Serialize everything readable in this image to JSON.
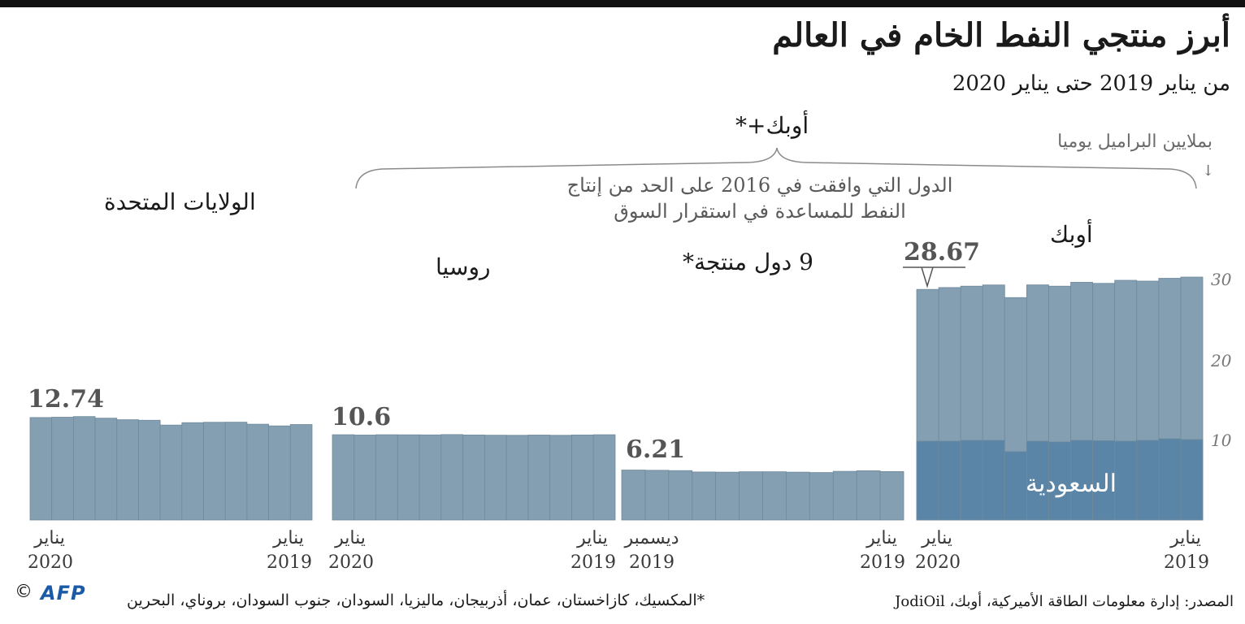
{
  "title": "أبرز منتجي النفط الخام في العالم",
  "subtitle": "من يناير 2019 حتى يناير 2020",
  "unit": "بملايين البراميل يوميا",
  "unit_arrow": "↓",
  "group": {
    "title": "أوبك+*",
    "desc_line1": "الدول التي وافقت في 2016 على الحد من إنتاج",
    "desc_line2": "النفط للمساعدة في استقرار السوق"
  },
  "regions": {
    "usa": "الولايات المتحدة",
    "russia": "روسيا",
    "nine": "9 دول منتجة*",
    "opec": "أوبك",
    "saudi": "السعودية"
  },
  "value_labels": {
    "usa": "12.74",
    "russia": "10.6",
    "nine": "6.21",
    "opec": "28.67"
  },
  "axis_labels": {
    "usa_left_month": "يناير",
    "usa_left_year": "2020",
    "usa_right_month": "يناير",
    "usa_right_year": "2019",
    "russia_left_month": "يناير",
    "russia_left_year": "2020",
    "russia_right_month": "يناير",
    "russia_right_year": "2019",
    "nine_left_month": "ديسمبر",
    "nine_left_year": "2019",
    "nine_right_month": "يناير",
    "nine_right_year": "2019",
    "opec_left_month": "يناير",
    "opec_left_year": "2020",
    "opec_right_month": "يناير",
    "opec_right_year": "2019"
  },
  "y_ticks": [
    "10",
    "20",
    "30"
  ],
  "source": "المصدر: إدارة معلومات الطاقة الأميركية، أوبك، JodiOil",
  "footnote": "*المكسيك، كازاخستان، عمان، أذربيجان، ماليزيا، السودان، جنوب السودان، بروناي، البحرين",
  "logo": "AFP",
  "copyright": "©",
  "colors": {
    "bar": "#849fb2",
    "bar_stroke": "#6f8a9c",
    "saudi": "#5a85a6",
    "text": "#1a1a1a"
  },
  "chart_data": [
    {
      "type": "bar",
      "title": "الولايات المتحدة",
      "categories": [
        "2020-01",
        "2019-12",
        "2019-11",
        "2019-10",
        "2019-09",
        "2019-08",
        "2019-07",
        "2019-06",
        "2019-05",
        "2019-04",
        "2019-03",
        "2019-02",
        "2019-01"
      ],
      "values": [
        12.74,
        12.78,
        12.86,
        12.66,
        12.47,
        12.4,
        11.8,
        12.1,
        12.15,
        12.16,
        11.91,
        11.7,
        11.87
      ],
      "ylim": [
        0,
        30
      ]
    },
    {
      "type": "bar",
      "title": "روسيا",
      "categories": [
        "2020-01",
        "2019-12",
        "2019-11",
        "2019-10",
        "2019-09",
        "2019-08",
        "2019-07",
        "2019-06",
        "2019-05",
        "2019-04",
        "2019-03",
        "2019-02",
        "2019-01"
      ],
      "values": [
        10.6,
        10.56,
        10.6,
        10.59,
        10.58,
        10.62,
        10.57,
        10.54,
        10.53,
        10.56,
        10.53,
        10.57,
        10.6
      ],
      "ylim": [
        0,
        30
      ]
    },
    {
      "type": "bar",
      "title": "9 دول منتجة*",
      "categories": [
        "2019-12",
        "2019-11",
        "2019-10",
        "2019-09",
        "2019-08",
        "2019-07",
        "2019-06",
        "2019-05",
        "2019-04",
        "2019-03",
        "2019-02",
        "2019-01"
      ],
      "values": [
        6.21,
        6.18,
        6.14,
        5.97,
        5.95,
        6.0,
        6.0,
        5.95,
        5.9,
        6.05,
        6.12,
        6.02
      ],
      "ylim": [
        0,
        30
      ]
    },
    {
      "type": "bar",
      "title": "أوبك",
      "categories": [
        "2020-01",
        "2019-12",
        "2019-11",
        "2019-10",
        "2019-09",
        "2019-08",
        "2019-07",
        "2019-06",
        "2019-05",
        "2019-04",
        "2019-03",
        "2019-02",
        "2019-01"
      ],
      "series": [
        {
          "name": "السعودية",
          "values": [
            9.8,
            9.8,
            9.9,
            9.9,
            8.5,
            9.8,
            9.7,
            9.9,
            9.85,
            9.8,
            9.9,
            10.1,
            10.0
          ]
        },
        {
          "name": "أوبك",
          "values": [
            28.67,
            28.9,
            29.07,
            29.22,
            27.65,
            29.23,
            29.07,
            29.55,
            29.42,
            29.8,
            29.7,
            30.05,
            30.2
          ]
        }
      ],
      "y_ticks": [
        10,
        20,
        30
      ],
      "ylim": [
        0,
        30
      ]
    }
  ]
}
